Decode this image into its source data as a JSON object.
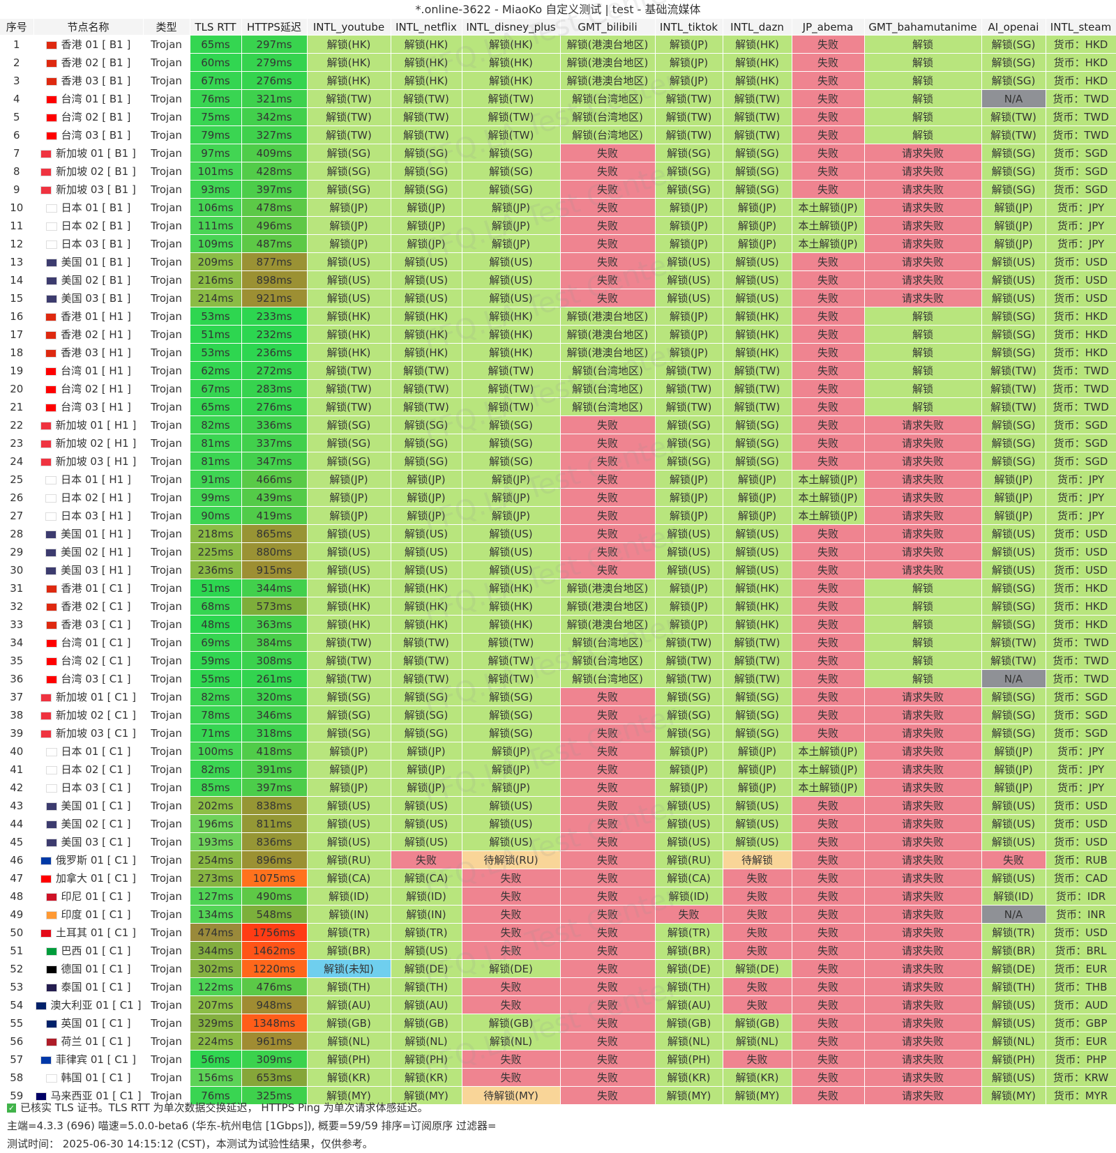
{
  "window_title": "*.online-3622 - MiaoKo 自定义测试 | test - 基础流媒体",
  "columns": [
    "序号",
    "节点名称",
    "类型",
    "TLS RTT",
    "HTTPS延迟",
    "INTL_youtube",
    "INTL_netflix",
    "INTL_disney_plus",
    "GMT_bilibili",
    "INTL_tiktok",
    "INTL_dazn",
    "JP_abema",
    "GMT_bahamutanime",
    "AI_openai",
    "INTL_steam"
  ],
  "colors": {
    "unlock": "#b8e57d",
    "fail": "#ef8490",
    "pending": "#f9d598",
    "na": "#8f9196",
    "unknown": "#6fcfee"
  },
  "rows": [
    [
      "1",
      "香港 01 [ B1 ]",
      "Trojan",
      "65ms",
      "297ms",
      "解锁(HK)",
      "解锁(HK)",
      "解锁(HK)",
      "解锁(港澳台地区)",
      "解锁(JP)",
      "解锁(HK)",
      "失败",
      "解锁",
      "解锁(SG)",
      "货币：HKD"
    ],
    [
      "2",
      "香港 02 [ B1 ]",
      "Trojan",
      "60ms",
      "279ms",
      "解锁(HK)",
      "解锁(HK)",
      "解锁(HK)",
      "解锁(港澳台地区)",
      "解锁(JP)",
      "解锁(HK)",
      "失败",
      "解锁",
      "解锁(SG)",
      "货币：HKD"
    ],
    [
      "3",
      "香港 03 [ B1 ]",
      "Trojan",
      "67ms",
      "276ms",
      "解锁(HK)",
      "解锁(HK)",
      "解锁(HK)",
      "解锁(港澳台地区)",
      "解锁(JP)",
      "解锁(HK)",
      "失败",
      "解锁",
      "解锁(SG)",
      "货币：HKD"
    ],
    [
      "4",
      "台湾 01 [ B1 ]",
      "Trojan",
      "76ms",
      "321ms",
      "解锁(TW)",
      "解锁(TW)",
      "解锁(TW)",
      "解锁(台湾地区)",
      "解锁(TW)",
      "解锁(TW)",
      "失败",
      "解锁",
      "N/A",
      "货币：TWD"
    ],
    [
      "5",
      "台湾 02 [ B1 ]",
      "Trojan",
      "75ms",
      "342ms",
      "解锁(TW)",
      "解锁(TW)",
      "解锁(TW)",
      "解锁(台湾地区)",
      "解锁(TW)",
      "解锁(TW)",
      "失败",
      "解锁",
      "解锁(TW)",
      "货币：TWD"
    ],
    [
      "6",
      "台湾 03 [ B1 ]",
      "Trojan",
      "79ms",
      "327ms",
      "解锁(TW)",
      "解锁(TW)",
      "解锁(TW)",
      "解锁(台湾地区)",
      "解锁(TW)",
      "解锁(TW)",
      "失败",
      "解锁",
      "解锁(TW)",
      "货币：TWD"
    ],
    [
      "7",
      "新加坡 01 [ B1 ]",
      "Trojan",
      "97ms",
      "409ms",
      "解锁(SG)",
      "解锁(SG)",
      "解锁(SG)",
      "失败",
      "解锁(SG)",
      "解锁(SG)",
      "失败",
      "请求失败",
      "解锁(SG)",
      "货币：SGD"
    ],
    [
      "8",
      "新加坡 02 [ B1 ]",
      "Trojan",
      "101ms",
      "428ms",
      "解锁(SG)",
      "解锁(SG)",
      "解锁(SG)",
      "失败",
      "解锁(SG)",
      "解锁(SG)",
      "失败",
      "请求失败",
      "解锁(SG)",
      "货币：SGD"
    ],
    [
      "9",
      "新加坡 03 [ B1 ]",
      "Trojan",
      "93ms",
      "397ms",
      "解锁(SG)",
      "解锁(SG)",
      "解锁(SG)",
      "失败",
      "解锁(SG)",
      "解锁(SG)",
      "失败",
      "请求失败",
      "解锁(SG)",
      "货币：SGD"
    ],
    [
      "10",
      "日本 01 [ B1 ]",
      "Trojan",
      "106ms",
      "478ms",
      "解锁(JP)",
      "解锁(JP)",
      "解锁(JP)",
      "失败",
      "解锁(JP)",
      "解锁(JP)",
      "本土解锁(JP)",
      "请求失败",
      "解锁(JP)",
      "货币：JPY"
    ],
    [
      "11",
      "日本 02 [ B1 ]",
      "Trojan",
      "111ms",
      "496ms",
      "解锁(JP)",
      "解锁(JP)",
      "解锁(JP)",
      "失败",
      "解锁(JP)",
      "解锁(JP)",
      "本土解锁(JP)",
      "请求失败",
      "解锁(JP)",
      "货币：JPY"
    ],
    [
      "12",
      "日本 03 [ B1 ]",
      "Trojan",
      "109ms",
      "487ms",
      "解锁(JP)",
      "解锁(JP)",
      "解锁(JP)",
      "失败",
      "解锁(JP)",
      "解锁(JP)",
      "本土解锁(JP)",
      "请求失败",
      "解锁(JP)",
      "货币：JPY"
    ],
    [
      "13",
      "美国 01 [ B1 ]",
      "Trojan",
      "209ms",
      "877ms",
      "解锁(US)",
      "解锁(US)",
      "解锁(US)",
      "失败",
      "解锁(US)",
      "解锁(US)",
      "失败",
      "请求失败",
      "解锁(US)",
      "货币：USD"
    ],
    [
      "14",
      "美国 02 [ B1 ]",
      "Trojan",
      "216ms",
      "898ms",
      "解锁(US)",
      "解锁(US)",
      "解锁(US)",
      "失败",
      "解锁(US)",
      "解锁(US)",
      "失败",
      "请求失败",
      "解锁(US)",
      "货币：USD"
    ],
    [
      "15",
      "美国 03 [ B1 ]",
      "Trojan",
      "214ms",
      "921ms",
      "解锁(US)",
      "解锁(US)",
      "解锁(US)",
      "失败",
      "解锁(US)",
      "解锁(US)",
      "失败",
      "请求失败",
      "解锁(US)",
      "货币：USD"
    ],
    [
      "16",
      "香港 01 [ H1 ]",
      "Trojan",
      "53ms",
      "233ms",
      "解锁(HK)",
      "解锁(HK)",
      "解锁(HK)",
      "解锁(港澳台地区)",
      "解锁(JP)",
      "解锁(HK)",
      "失败",
      "解锁",
      "解锁(SG)",
      "货币：HKD"
    ],
    [
      "17",
      "香港 02 [ H1 ]",
      "Trojan",
      "51ms",
      "232ms",
      "解锁(HK)",
      "解锁(HK)",
      "解锁(HK)",
      "解锁(港澳台地区)",
      "解锁(JP)",
      "解锁(HK)",
      "失败",
      "解锁",
      "解锁(SG)",
      "货币：HKD"
    ],
    [
      "18",
      "香港 03 [ H1 ]",
      "Trojan",
      "53ms",
      "236ms",
      "解锁(HK)",
      "解锁(HK)",
      "解锁(HK)",
      "解锁(港澳台地区)",
      "解锁(JP)",
      "解锁(HK)",
      "失败",
      "解锁",
      "解锁(SG)",
      "货币：HKD"
    ],
    [
      "19",
      "台湾 01 [ H1 ]",
      "Trojan",
      "62ms",
      "272ms",
      "解锁(TW)",
      "解锁(TW)",
      "解锁(TW)",
      "解锁(台湾地区)",
      "解锁(TW)",
      "解锁(TW)",
      "失败",
      "解锁",
      "解锁(TW)",
      "货币：TWD"
    ],
    [
      "20",
      "台湾 02 [ H1 ]",
      "Trojan",
      "67ms",
      "283ms",
      "解锁(TW)",
      "解锁(TW)",
      "解锁(TW)",
      "解锁(台湾地区)",
      "解锁(TW)",
      "解锁(TW)",
      "失败",
      "解锁",
      "解锁(TW)",
      "货币：TWD"
    ],
    [
      "21",
      "台湾 03 [ H1 ]",
      "Trojan",
      "65ms",
      "276ms",
      "解锁(TW)",
      "解锁(TW)",
      "解锁(TW)",
      "解锁(台湾地区)",
      "解锁(TW)",
      "解锁(TW)",
      "失败",
      "解锁",
      "解锁(TW)",
      "货币：TWD"
    ],
    [
      "22",
      "新加坡 01 [ H1 ]",
      "Trojan",
      "82ms",
      "336ms",
      "解锁(SG)",
      "解锁(SG)",
      "解锁(SG)",
      "失败",
      "解锁(SG)",
      "解锁(SG)",
      "失败",
      "请求失败",
      "解锁(SG)",
      "货币：SGD"
    ],
    [
      "23",
      "新加坡 02 [ H1 ]",
      "Trojan",
      "81ms",
      "337ms",
      "解锁(SG)",
      "解锁(SG)",
      "解锁(SG)",
      "失败",
      "解锁(SG)",
      "解锁(SG)",
      "失败",
      "请求失败",
      "解锁(SG)",
      "货币：SGD"
    ],
    [
      "24",
      "新加坡 03 [ H1 ]",
      "Trojan",
      "81ms",
      "347ms",
      "解锁(SG)",
      "解锁(SG)",
      "解锁(SG)",
      "失败",
      "解锁(SG)",
      "解锁(SG)",
      "失败",
      "请求失败",
      "解锁(SG)",
      "货币：SGD"
    ],
    [
      "25",
      "日本 01 [ H1 ]",
      "Trojan",
      "91ms",
      "466ms",
      "解锁(JP)",
      "解锁(JP)",
      "解锁(JP)",
      "失败",
      "解锁(JP)",
      "解锁(JP)",
      "本土解锁(JP)",
      "请求失败",
      "解锁(JP)",
      "货币：JPY"
    ],
    [
      "26",
      "日本 02 [ H1 ]",
      "Trojan",
      "99ms",
      "439ms",
      "解锁(JP)",
      "解锁(JP)",
      "解锁(JP)",
      "失败",
      "解锁(JP)",
      "解锁(JP)",
      "本土解锁(JP)",
      "请求失败",
      "解锁(JP)",
      "货币：JPY"
    ],
    [
      "27",
      "日本 03 [ H1 ]",
      "Trojan",
      "90ms",
      "419ms",
      "解锁(JP)",
      "解锁(JP)",
      "解锁(JP)",
      "失败",
      "解锁(JP)",
      "解锁(JP)",
      "本土解锁(JP)",
      "请求失败",
      "解锁(JP)",
      "货币：JPY"
    ],
    [
      "28",
      "美国 01 [ H1 ]",
      "Trojan",
      "218ms",
      "865ms",
      "解锁(US)",
      "解锁(US)",
      "解锁(US)",
      "失败",
      "解锁(US)",
      "解锁(US)",
      "失败",
      "请求失败",
      "解锁(US)",
      "货币：USD"
    ],
    [
      "29",
      "美国 02 [ H1 ]",
      "Trojan",
      "225ms",
      "880ms",
      "解锁(US)",
      "解锁(US)",
      "解锁(US)",
      "失败",
      "解锁(US)",
      "解锁(US)",
      "失败",
      "请求失败",
      "解锁(US)",
      "货币：USD"
    ],
    [
      "30",
      "美国 03 [ H1 ]",
      "Trojan",
      "236ms",
      "915ms",
      "解锁(US)",
      "解锁(US)",
      "解锁(US)",
      "失败",
      "解锁(US)",
      "解锁(US)",
      "失败",
      "请求失败",
      "解锁(US)",
      "货币：USD"
    ],
    [
      "31",
      "香港 01 [ C1 ]",
      "Trojan",
      "51ms",
      "344ms",
      "解锁(HK)",
      "解锁(HK)",
      "解锁(HK)",
      "解锁(港澳台地区)",
      "解锁(JP)",
      "解锁(HK)",
      "失败",
      "解锁",
      "解锁(SG)",
      "货币：HKD"
    ],
    [
      "32",
      "香港 02 [ C1 ]",
      "Trojan",
      "68ms",
      "573ms",
      "解锁(HK)",
      "解锁(HK)",
      "解锁(HK)",
      "解锁(港澳台地区)",
      "解锁(JP)",
      "解锁(HK)",
      "失败",
      "解锁",
      "解锁(SG)",
      "货币：HKD"
    ],
    [
      "33",
      "香港 03 [ C1 ]",
      "Trojan",
      "48ms",
      "363ms",
      "解锁(HK)",
      "解锁(HK)",
      "解锁(HK)",
      "解锁(港澳台地区)",
      "解锁(JP)",
      "解锁(HK)",
      "失败",
      "解锁",
      "解锁(SG)",
      "货币：HKD"
    ],
    [
      "34",
      "台湾 01 [ C1 ]",
      "Trojan",
      "69ms",
      "384ms",
      "解锁(TW)",
      "解锁(TW)",
      "解锁(TW)",
      "解锁(台湾地区)",
      "解锁(TW)",
      "解锁(TW)",
      "失败",
      "解锁",
      "解锁(TW)",
      "货币：TWD"
    ],
    [
      "35",
      "台湾 02 [ C1 ]",
      "Trojan",
      "59ms",
      "308ms",
      "解锁(TW)",
      "解锁(TW)",
      "解锁(TW)",
      "解锁(台湾地区)",
      "解锁(TW)",
      "解锁(TW)",
      "失败",
      "解锁",
      "解锁(TW)",
      "货币：TWD"
    ],
    [
      "36",
      "台湾 03 [ C1 ]",
      "Trojan",
      "55ms",
      "261ms",
      "解锁(TW)",
      "解锁(TW)",
      "解锁(TW)",
      "解锁(台湾地区)",
      "解锁(TW)",
      "解锁(TW)",
      "失败",
      "解锁",
      "N/A",
      "货币：TWD"
    ],
    [
      "37",
      "新加坡 01 [ C1 ]",
      "Trojan",
      "82ms",
      "320ms",
      "解锁(SG)",
      "解锁(SG)",
      "解锁(SG)",
      "失败",
      "解锁(SG)",
      "解锁(SG)",
      "失败",
      "请求失败",
      "解锁(SG)",
      "货币：SGD"
    ],
    [
      "38",
      "新加坡 02 [ C1 ]",
      "Trojan",
      "78ms",
      "346ms",
      "解锁(SG)",
      "解锁(SG)",
      "解锁(SG)",
      "失败",
      "解锁(SG)",
      "解锁(SG)",
      "失败",
      "请求失败",
      "解锁(SG)",
      "货币：SGD"
    ],
    [
      "39",
      "新加坡 03 [ C1 ]",
      "Trojan",
      "71ms",
      "318ms",
      "解锁(SG)",
      "解锁(SG)",
      "解锁(SG)",
      "失败",
      "解锁(SG)",
      "解锁(SG)",
      "失败",
      "请求失败",
      "解锁(SG)",
      "货币：SGD"
    ],
    [
      "40",
      "日本 01 [ C1 ]",
      "Trojan",
      "100ms",
      "418ms",
      "解锁(JP)",
      "解锁(JP)",
      "解锁(JP)",
      "失败",
      "解锁(JP)",
      "解锁(JP)",
      "本土解锁(JP)",
      "请求失败",
      "解锁(JP)",
      "货币：JPY"
    ],
    [
      "41",
      "日本 02 [ C1 ]",
      "Trojan",
      "82ms",
      "391ms",
      "解锁(JP)",
      "解锁(JP)",
      "解锁(JP)",
      "失败",
      "解锁(JP)",
      "解锁(JP)",
      "本土解锁(JP)",
      "请求失败",
      "解锁(JP)",
      "货币：JPY"
    ],
    [
      "42",
      "日本 03 [ C1 ]",
      "Trojan",
      "85ms",
      "397ms",
      "解锁(JP)",
      "解锁(JP)",
      "解锁(JP)",
      "失败",
      "解锁(JP)",
      "解锁(JP)",
      "本土解锁(JP)",
      "请求失败",
      "解锁(JP)",
      "货币：JPY"
    ],
    [
      "43",
      "美国 01 [ C1 ]",
      "Trojan",
      "202ms",
      "838ms",
      "解锁(US)",
      "解锁(US)",
      "解锁(US)",
      "失败",
      "解锁(US)",
      "解锁(US)",
      "失败",
      "请求失败",
      "解锁(US)",
      "货币：USD"
    ],
    [
      "44",
      "美国 02 [ C1 ]",
      "Trojan",
      "196ms",
      "811ms",
      "解锁(US)",
      "解锁(US)",
      "解锁(US)",
      "失败",
      "解锁(US)",
      "解锁(US)",
      "失败",
      "请求失败",
      "解锁(US)",
      "货币：USD"
    ],
    [
      "45",
      "美国 03 [ C1 ]",
      "Trojan",
      "193ms",
      "836ms",
      "解锁(US)",
      "解锁(US)",
      "解锁(US)",
      "失败",
      "解锁(US)",
      "解锁(US)",
      "失败",
      "请求失败",
      "解锁(US)",
      "货币：USD"
    ],
    [
      "46",
      "俄罗斯 01 [ C1 ]",
      "Trojan",
      "254ms",
      "896ms",
      "解锁(RU)",
      "失败",
      "待解锁(RU)",
      "失败",
      "解锁(RU)",
      "待解锁",
      "失败",
      "请求失败",
      "失败",
      "货币：RUB"
    ],
    [
      "47",
      "加拿大 01 [ C1 ]",
      "Trojan",
      "273ms",
      "1075ms",
      "解锁(CA)",
      "解锁(CA)",
      "失败",
      "失败",
      "解锁(CA)",
      "失败",
      "失败",
      "请求失败",
      "解锁(US)",
      "货币：CAD"
    ],
    [
      "48",
      "印尼 01 [ C1 ]",
      "Trojan",
      "127ms",
      "490ms",
      "解锁(ID)",
      "解锁(ID)",
      "失败",
      "失败",
      "解锁(ID)",
      "失败",
      "失败",
      "请求失败",
      "解锁(ID)",
      "货币：IDR"
    ],
    [
      "49",
      "印度 01 [ C1 ]",
      "Trojan",
      "134ms",
      "548ms",
      "解锁(IN)",
      "解锁(IN)",
      "失败",
      "失败",
      "失败",
      "失败",
      "失败",
      "请求失败",
      "N/A",
      "货币：INR"
    ],
    [
      "50",
      "土耳其 01 [ C1 ]",
      "Trojan",
      "474ms",
      "1756ms",
      "解锁(TR)",
      "解锁(TR)",
      "失败",
      "失败",
      "解锁(TR)",
      "失败",
      "失败",
      "请求失败",
      "解锁(TR)",
      "货币：USD"
    ],
    [
      "51",
      "巴西 01 [ C1 ]",
      "Trojan",
      "344ms",
      "1462ms",
      "解锁(BR)",
      "解锁(US)",
      "失败",
      "失败",
      "解锁(BR)",
      "失败",
      "失败",
      "请求失败",
      "解锁(BR)",
      "货币：BRL"
    ],
    [
      "52",
      "德国 01 [ C1 ]",
      "Trojan",
      "302ms",
      "1220ms",
      "解锁(未知)",
      "解锁(DE)",
      "解锁(DE)",
      "失败",
      "解锁(DE)",
      "解锁(DE)",
      "失败",
      "请求失败",
      "解锁(DE)",
      "货币：EUR"
    ],
    [
      "53",
      "泰国 01 [ C1 ]",
      "Trojan",
      "122ms",
      "476ms",
      "解锁(TH)",
      "解锁(TH)",
      "失败",
      "失败",
      "解锁(TH)",
      "失败",
      "失败",
      "请求失败",
      "解锁(TH)",
      "货币：THB"
    ],
    [
      "54",
      "澳大利亚 01 [ C1 ]",
      "Trojan",
      "207ms",
      "948ms",
      "解锁(AU)",
      "解锁(AU)",
      "失败",
      "失败",
      "解锁(AU)",
      "失败",
      "失败",
      "请求失败",
      "解锁(US)",
      "货币：AUD"
    ],
    [
      "55",
      "英国 01 [ C1 ]",
      "Trojan",
      "329ms",
      "1348ms",
      "解锁(GB)",
      "解锁(GB)",
      "解锁(GB)",
      "失败",
      "解锁(GB)",
      "解锁(GB)",
      "失败",
      "请求失败",
      "解锁(US)",
      "货币：GBP"
    ],
    [
      "56",
      "荷兰 01 [ C1 ]",
      "Trojan",
      "224ms",
      "961ms",
      "解锁(NL)",
      "解锁(NL)",
      "解锁(NL)",
      "失败",
      "解锁(NL)",
      "解锁(NL)",
      "失败",
      "请求失败",
      "解锁(NL)",
      "货币：EUR"
    ],
    [
      "57",
      "菲律宾 01 [ C1 ]",
      "Trojan",
      "56ms",
      "309ms",
      "解锁(PH)",
      "解锁(PH)",
      "失败",
      "失败",
      "解锁(PH)",
      "失败",
      "失败",
      "请求失败",
      "解锁(PH)",
      "货币：PHP"
    ],
    [
      "58",
      "韩国 01 [ C1 ]",
      "Trojan",
      "156ms",
      "653ms",
      "解锁(KR)",
      "解锁(KR)",
      "失败",
      "失败",
      "解锁(KR)",
      "解锁(KR)",
      "失败",
      "请求失败",
      "解锁(US)",
      "货币：KRW"
    ],
    [
      "59",
      "马来西亚 01 [ C1 ]",
      "Trojan",
      "76ms",
      "325ms",
      "解锁(MY)",
      "解锁(MY)",
      "待解锁(MY)",
      "失败",
      "解锁(MY)",
      "解锁(MY)",
      "失败",
      "请求失败",
      "解锁(MY)",
      "货币：MYR"
    ]
  ],
  "footer": {
    "line1": "已核实 TLS 证书。TLS RTT 为单次数据交换延迟， HTTPS Ping 为单次请求体感延迟。",
    "line2": "主端=4.3.3 (696) 喵速=5.0.0-beta6 (华东-杭州电信 [1Gbps]), 概要=59/59 排序=订阅原序 过滤器=",
    "line3": "测试时间： 2025-06-30 14:15:12 (CST)，本测试为试验性结果，仅供参考。"
  },
  "watermark_text": "FFQ.LA Test Center"
}
